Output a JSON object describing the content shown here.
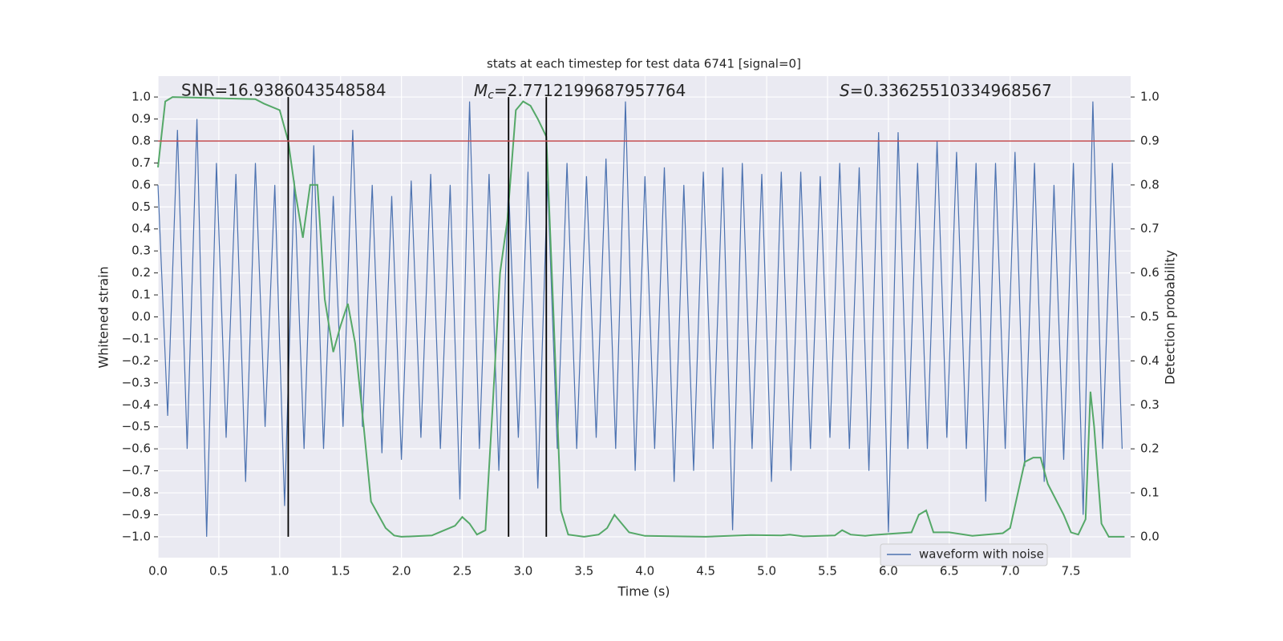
{
  "chart_data": {
    "type": "line",
    "title": "stats at each timestep for test data 6741 [signal=0]",
    "xlabel": "Time (s)",
    "ylabel": "Whitened strain",
    "y2label": "Detection probability",
    "annotations": [
      {
        "text": "SNR=16.9386043548584"
      },
      {
        "symbol": "M",
        "subscript": "c",
        "text": "=2.7712199687957764"
      },
      {
        "symbol": "S",
        "text": "=0.33625510334968567"
      }
    ],
    "xlim": [
      0,
      7.99
    ],
    "ylim": [
      -1.095,
      1.095
    ],
    "y2lim": [
      -0.0475,
      1.0475
    ],
    "xticks": [
      {
        "value": 0,
        "label": "0.0"
      },
      {
        "value": 0.5,
        "label": "0.5"
      },
      {
        "value": 1,
        "label": "1.0"
      },
      {
        "value": 1.5,
        "label": "1.5"
      },
      {
        "value": 2,
        "label": "2.0"
      },
      {
        "value": 2.5,
        "label": "2.5"
      },
      {
        "value": 3,
        "label": "3.0"
      },
      {
        "value": 3.5,
        "label": "3.5"
      },
      {
        "value": 4,
        "label": "4.0"
      },
      {
        "value": 4.5,
        "label": "4.5"
      },
      {
        "value": 5,
        "label": "5.0"
      },
      {
        "value": 5.5,
        "label": "5.5"
      },
      {
        "value": 6,
        "label": "6.0"
      },
      {
        "value": 6.5,
        "label": "6.5"
      },
      {
        "value": 7,
        "label": "7.0"
      },
      {
        "value": 7.5,
        "label": "7.5"
      }
    ],
    "yticks": [
      {
        "value": -1,
        "label": "−1.0"
      },
      {
        "value": -0.9,
        "label": "−0.9"
      },
      {
        "value": -0.8,
        "label": "−0.8"
      },
      {
        "value": -0.7,
        "label": "−0.7"
      },
      {
        "value": -0.6,
        "label": "−0.6"
      },
      {
        "value": -0.5,
        "label": "−0.5"
      },
      {
        "value": -0.4,
        "label": "−0.4"
      },
      {
        "value": -0.3,
        "label": "−0.3"
      },
      {
        "value": -0.2,
        "label": "−0.2"
      },
      {
        "value": -0.1,
        "label": "−0.1"
      },
      {
        "value": 0,
        "label": "0.0"
      },
      {
        "value": 0.1,
        "label": "0.1"
      },
      {
        "value": 0.2,
        "label": "0.2"
      },
      {
        "value": 0.3,
        "label": "0.3"
      },
      {
        "value": 0.4,
        "label": "0.4"
      },
      {
        "value": 0.5,
        "label": "0.5"
      },
      {
        "value": 0.6,
        "label": "0.6"
      },
      {
        "value": 0.7,
        "label": "0.7"
      },
      {
        "value": 0.8,
        "label": "0.8"
      },
      {
        "value": 0.9,
        "label": "0.9"
      },
      {
        "value": 1,
        "label": "1.0"
      }
    ],
    "y2ticks": [
      {
        "value": 0,
        "label": "0.0"
      },
      {
        "value": 0.1,
        "label": "0.1"
      },
      {
        "value": 0.2,
        "label": "0.2"
      },
      {
        "value": 0.3,
        "label": "0.3"
      },
      {
        "value": 0.4,
        "label": "0.4"
      },
      {
        "value": 0.5,
        "label": "0.5"
      },
      {
        "value": 0.6,
        "label": "0.6"
      },
      {
        "value": 0.7,
        "label": "0.7"
      },
      {
        "value": 0.8,
        "label": "0.8"
      },
      {
        "value": 0.9,
        "label": "0.9"
      },
      {
        "value": 1,
        "label": "1.0"
      }
    ],
    "grid": true,
    "legend": "lower right",
    "series": [
      {
        "name": "waveform with noise",
        "color": "#4c72b0",
        "x": [
          0,
          0.08,
          0.16,
          0.24,
          0.32,
          0.4,
          0.48,
          0.56,
          0.64,
          0.72,
          0.8,
          0.88,
          0.96,
          1.04,
          1.12,
          1.2,
          1.28,
          1.36,
          1.44,
          1.52,
          1.6,
          1.68,
          1.76,
          1.84,
          1.92,
          2.0,
          2.08,
          2.16,
          2.24,
          2.32,
          2.4,
          2.48,
          2.56,
          2.64,
          2.72,
          2.8,
          2.88,
          2.96,
          3.04,
          3.12,
          3.2,
          3.28,
          3.36,
          3.44,
          3.52,
          3.6,
          3.68,
          3.76,
          3.84,
          3.92,
          4.0,
          4.08,
          4.16,
          4.24,
          4.32,
          4.4,
          4.48,
          4.56,
          4.64,
          4.72,
          4.8,
          4.88,
          4.96,
          5.04,
          5.12,
          5.2,
          5.28,
          5.36,
          5.44,
          5.52,
          5.6,
          5.68,
          5.76,
          5.84,
          5.92,
          6.0,
          6.08,
          6.16,
          6.24,
          6.32,
          6.4,
          6.48,
          6.56,
          6.64,
          6.72,
          6.8,
          6.88,
          6.96,
          7.04,
          7.12,
          7.2,
          7.28,
          7.36,
          7.44,
          7.52,
          7.6,
          7.68,
          7.76,
          7.84,
          7.92
        ],
        "values": [
          0.6,
          -0.45,
          0.85,
          -0.6,
          0.9,
          -1.0,
          0.7,
          -0.55,
          0.65,
          -0.75,
          0.7,
          -0.5,
          0.6,
          -0.86,
          0.62,
          -0.6,
          0.78,
          -0.6,
          0.55,
          -0.5,
          0.85,
          -0.5,
          0.6,
          -0.62,
          0.55,
          -0.65,
          0.62,
          -0.55,
          0.65,
          -0.6,
          0.6,
          -0.83,
          0.98,
          -0.6,
          0.65,
          -0.7,
          0.6,
          -0.55,
          0.66,
          -0.78,
          0.62,
          -0.6,
          0.7,
          -0.6,
          0.64,
          -0.55,
          0.72,
          -0.6,
          0.98,
          -0.7,
          0.64,
          -0.6,
          0.68,
          -0.75,
          0.6,
          -0.7,
          0.66,
          -0.6,
          0.68,
          -0.97,
          0.7,
          -0.6,
          0.65,
          -0.75,
          0.66,
          -0.7,
          0.66,
          -0.6,
          0.64,
          -0.55,
          0.7,
          -0.6,
          0.68,
          -0.7,
          0.84,
          -0.98,
          0.84,
          -0.6,
          0.7,
          -0.6,
          0.8,
          -0.55,
          0.75,
          -0.6,
          0.7,
          -0.84,
          0.7,
          -0.6,
          0.75,
          -0.68,
          0.7,
          -0.75,
          0.6,
          -0.65,
          0.7,
          -0.9,
          0.98,
          -0.6,
          0.7,
          -0.6
        ]
      },
      {
        "color": "#55a868",
        "axis": "y2",
        "x": [
          0,
          0.06,
          0.12,
          0.8,
          0.87,
          1.0,
          1.07,
          1.13,
          1.19,
          1.25,
          1.31,
          1.37,
          1.44,
          1.5,
          1.56,
          1.62,
          1.69,
          1.75,
          1.81,
          1.87,
          1.94,
          2.0,
          2.25,
          2.31,
          2.44,
          2.5,
          2.56,
          2.62,
          2.69,
          2.75,
          2.81,
          2.87,
          2.94,
          3.0,
          3.06,
          3.12,
          3.19,
          3.25,
          3.31,
          3.37,
          3.5,
          3.62,
          3.69,
          3.75,
          3.81,
          3.87,
          4.0,
          4.5,
          4.87,
          5.12,
          5.19,
          5.3,
          5.56,
          5.62,
          5.69,
          5.81,
          5.87,
          6.19,
          6.25,
          6.31,
          6.37,
          6.5,
          6.69,
          6.94,
          7.0,
          7.12,
          7.19,
          7.25,
          7.31,
          7.44,
          7.5,
          7.56,
          7.62,
          7.66,
          7.69,
          7.75,
          7.81,
          7.94
        ],
        "values": [
          0.84,
          0.99,
          1.0,
          0.995,
          0.985,
          0.97,
          0.9,
          0.78,
          0.68,
          0.8,
          0.8,
          0.54,
          0.42,
          0.48,
          0.53,
          0.44,
          0.25,
          0.08,
          0.05,
          0.02,
          0.003,
          0.0,
          0.003,
          0.01,
          0.025,
          0.045,
          0.03,
          0.005,
          0.015,
          0.3,
          0.6,
          0.72,
          0.97,
          0.99,
          0.98,
          0.95,
          0.91,
          0.5,
          0.06,
          0.005,
          0.0,
          0.005,
          0.02,
          0.05,
          0.03,
          0.01,
          0.002,
          0.0,
          0.004,
          0.003,
          0.005,
          0.001,
          0.003,
          0.015,
          0.005,
          0.002,
          0.004,
          0.01,
          0.05,
          0.06,
          0.01,
          0.01,
          0.002,
          0.008,
          0.02,
          0.17,
          0.18,
          0.18,
          0.12,
          0.05,
          0.01,
          0.005,
          0.04,
          0.33,
          0.25,
          0.03,
          0.0,
          0.0
        ]
      }
    ],
    "vlines": {
      "color": "#000000",
      "x": [
        1.07,
        2.88,
        3.19
      ],
      "range": [
        -1.0,
        1.0
      ]
    },
    "hline": {
      "color": "#c44e52",
      "axis": "y2",
      "value": 0.9
    }
  }
}
